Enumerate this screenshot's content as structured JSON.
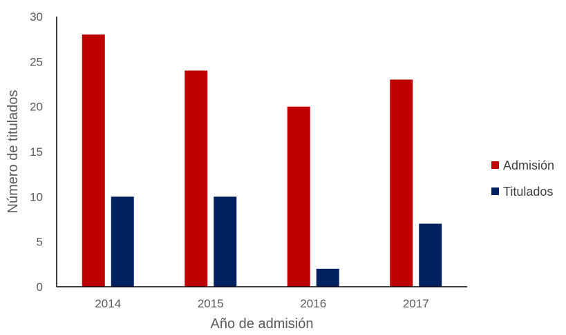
{
  "chart_data": {
    "type": "bar",
    "categories": [
      "2014",
      "2015",
      "2016",
      "2017"
    ],
    "series": [
      {
        "name": "Admisión",
        "values": [
          28,
          24,
          20,
          23
        ],
        "color": "#C00000"
      },
      {
        "name": "Titulados",
        "values": [
          10,
          10,
          2,
          7
        ],
        "color": "#002060"
      }
    ],
    "title": "",
    "xlabel": "Año de admisión",
    "ylabel": "Número de titulados",
    "ylim": [
      0,
      30
    ],
    "yticks": [
      0,
      5,
      10,
      15,
      20,
      25,
      30
    ],
    "grid": false,
    "legend_position": "right"
  }
}
